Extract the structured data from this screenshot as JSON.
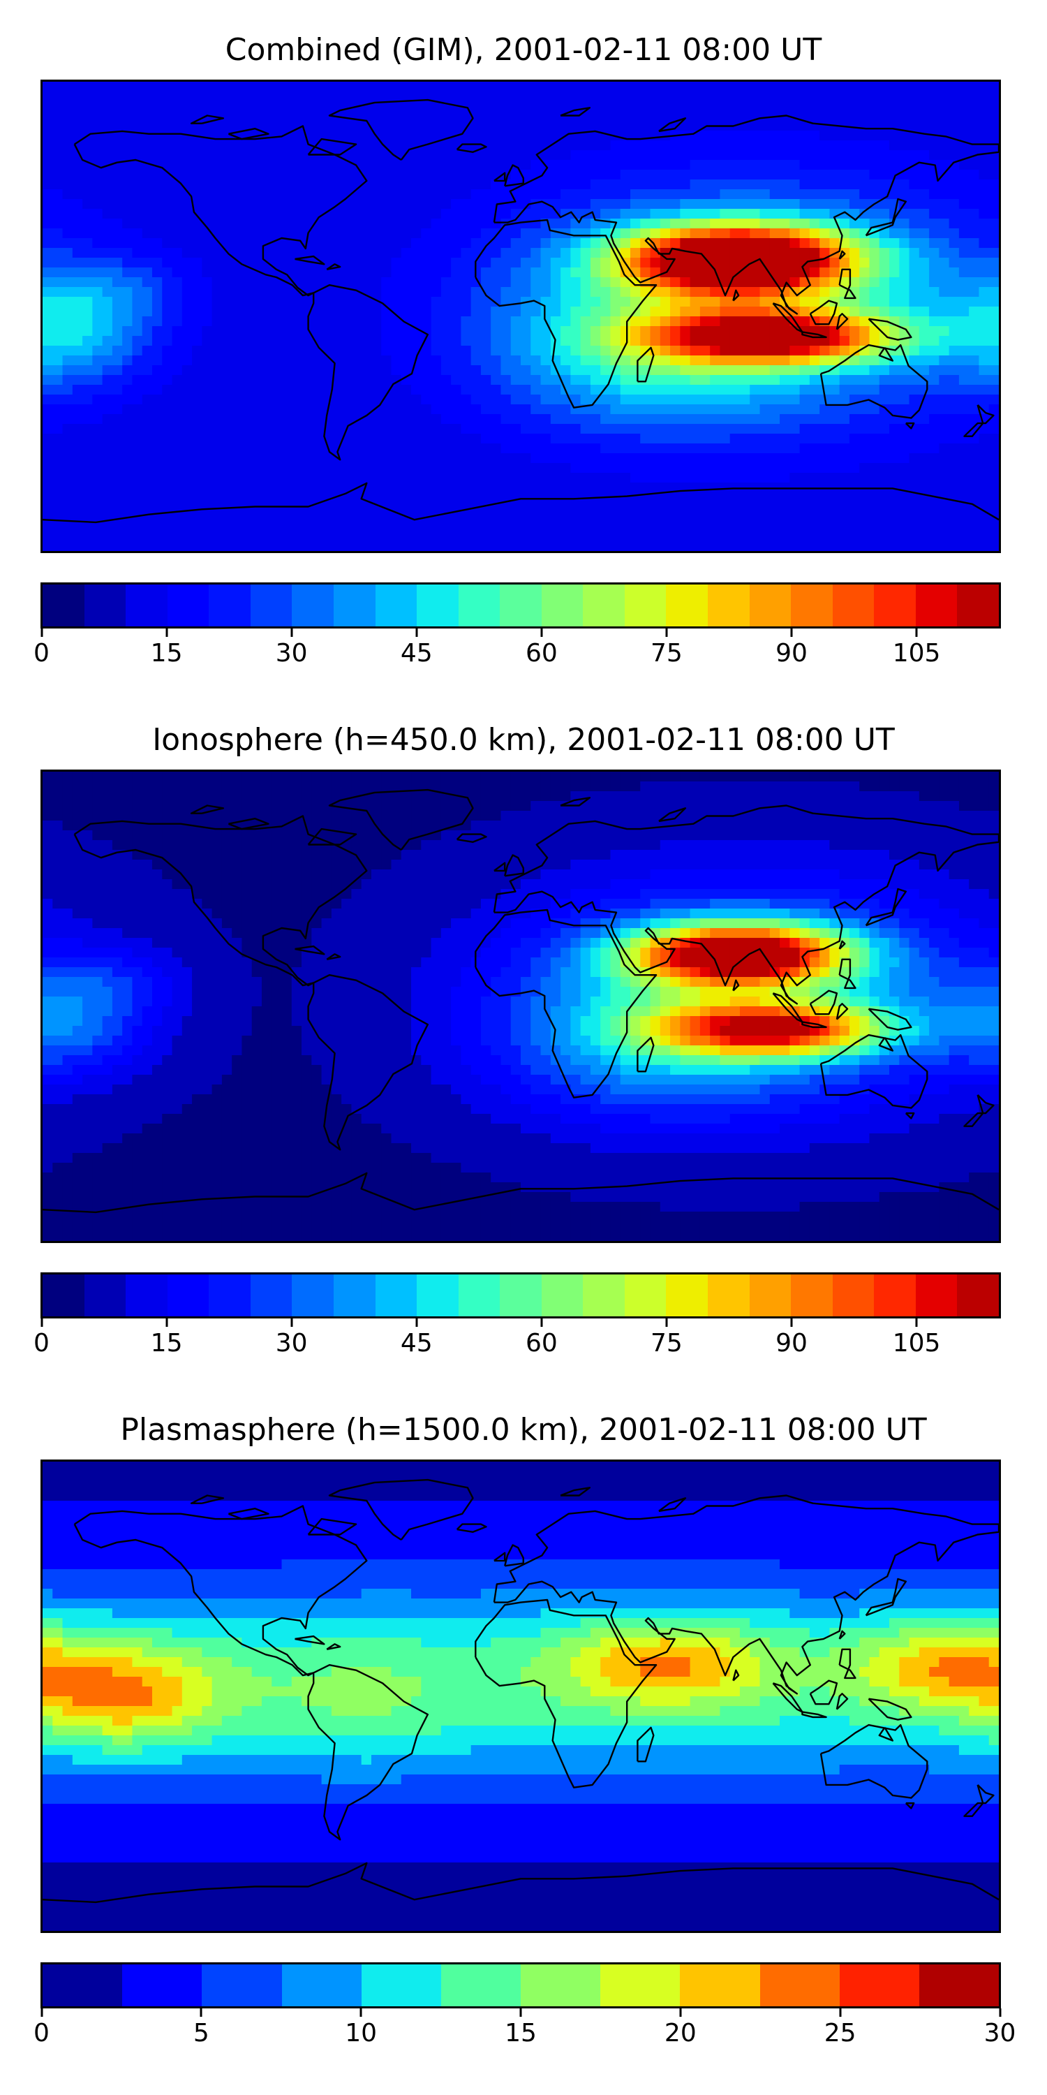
{
  "panels": [
    {
      "title": "Combined (GIM), 2001-02-11 08:00 UT",
      "colorbar": {
        "min": 0,
        "max": 115,
        "step": 5,
        "ticks": [
          "0",
          "15",
          "30",
          "45",
          "60",
          "75",
          "90",
          "105"
        ],
        "tick_values": [
          0,
          15,
          30,
          45,
          60,
          75,
          90,
          105
        ]
      },
      "field": {
        "scale": 110,
        "base": 10,
        "blobs": [
          {
            "lon": 82,
            "lat": 22,
            "slon": 30,
            "slat": 9,
            "amp": 1.0
          },
          {
            "lon": 95,
            "lat": -8,
            "slon": 32,
            "slat": 7,
            "amp": 0.72
          },
          {
            "lon": 85,
            "lat": 5,
            "slon": 65,
            "slat": 32,
            "amp": 0.38
          },
          {
            "lon": 45,
            "lat": -15,
            "slon": 40,
            "slat": 20,
            "amp": 0.18
          },
          {
            "lon": -170,
            "lat": -8,
            "slon": 22,
            "slat": 14,
            "amp": 0.22
          },
          {
            "lon": -155,
            "lat": 10,
            "slon": 22,
            "slat": 10,
            "amp": 0.12
          }
        ]
      }
    },
    {
      "title": "Ionosphere  (h=450.0 km), 2001-02-11 08:00 UT",
      "colorbar": {
        "min": 0,
        "max": 115,
        "step": 5,
        "ticks": [
          "0",
          "15",
          "30",
          "45",
          "60",
          "75",
          "90",
          "105"
        ],
        "tick_values": [
          0,
          15,
          30,
          45,
          60,
          75,
          90,
          105
        ]
      },
      "field": {
        "scale": 98,
        "base": 4,
        "blobs": [
          {
            "lon": 82,
            "lat": 20,
            "slon": 28,
            "slat": 8,
            "amp": 1.0
          },
          {
            "lon": 95,
            "lat": -9,
            "slon": 30,
            "slat": 7,
            "amp": 0.75
          },
          {
            "lon": 85,
            "lat": 5,
            "slon": 62,
            "slat": 30,
            "amp": 0.42
          },
          {
            "lon": 45,
            "lat": -15,
            "slon": 40,
            "slat": 20,
            "amp": 0.18
          },
          {
            "lon": -170,
            "lat": -8,
            "slon": 22,
            "slat": 13,
            "amp": 0.22
          },
          {
            "lon": -155,
            "lat": 10,
            "slon": 20,
            "slat": 9,
            "amp": 0.12
          }
        ]
      }
    },
    {
      "title": "Plasmasphere (h=1500.0 km), 2001-02-11 08:00 UT",
      "colorbar": {
        "min": 0,
        "max": 30,
        "step": 2.5,
        "ticks": [
          "0",
          "5",
          "10",
          "15",
          "20",
          "25",
          "30"
        ],
        "tick_values": [
          0,
          5,
          10,
          15,
          20,
          25,
          30
        ]
      },
      "field": {
        "scale": 21,
        "base": 2,
        "blobs": [
          {
            "lon": 0,
            "lat": 5,
            "slon": 400,
            "slat": 28,
            "amp": 0.55
          },
          {
            "lon": 55,
            "lat": 13,
            "slon": 28,
            "slat": 12,
            "amp": 0.48
          },
          {
            "lon": 160,
            "lat": 12,
            "slon": 25,
            "slat": 12,
            "amp": 0.45
          },
          {
            "lon": -150,
            "lat": 0,
            "slon": 26,
            "slat": 14,
            "amp": 0.5
          },
          {
            "lon": -60,
            "lat": -5,
            "slon": 25,
            "slat": 18,
            "amp": 0.12
          }
        ]
      }
    }
  ],
  "palette": [
    "#00007f",
    "#0000b4",
    "#0000ec",
    "#0000ff",
    "#0014ff",
    "#0040ff",
    "#006cff",
    "#0094ff",
    "#00c0ff",
    "#10ecee",
    "#34ffc4",
    "#5bff9c",
    "#81ff75",
    "#a6ff51",
    "#ccff2b",
    "#eeee00",
    "#ffc500",
    "#ffa000",
    "#ff7800",
    "#ff5000",
    "#ff2800",
    "#e40000",
    "#bb0000",
    "#8b0000"
  ],
  "palette_plasma": [
    "#00009c",
    "#0000ff",
    "#0044ff",
    "#0094ff",
    "#10ecee",
    "#50ff9e",
    "#90ff62",
    "#d8ff22",
    "#ffc400",
    "#ff6c00",
    "#ff2200",
    "#b00000"
  ],
  "coastline_color": "#000000"
}
